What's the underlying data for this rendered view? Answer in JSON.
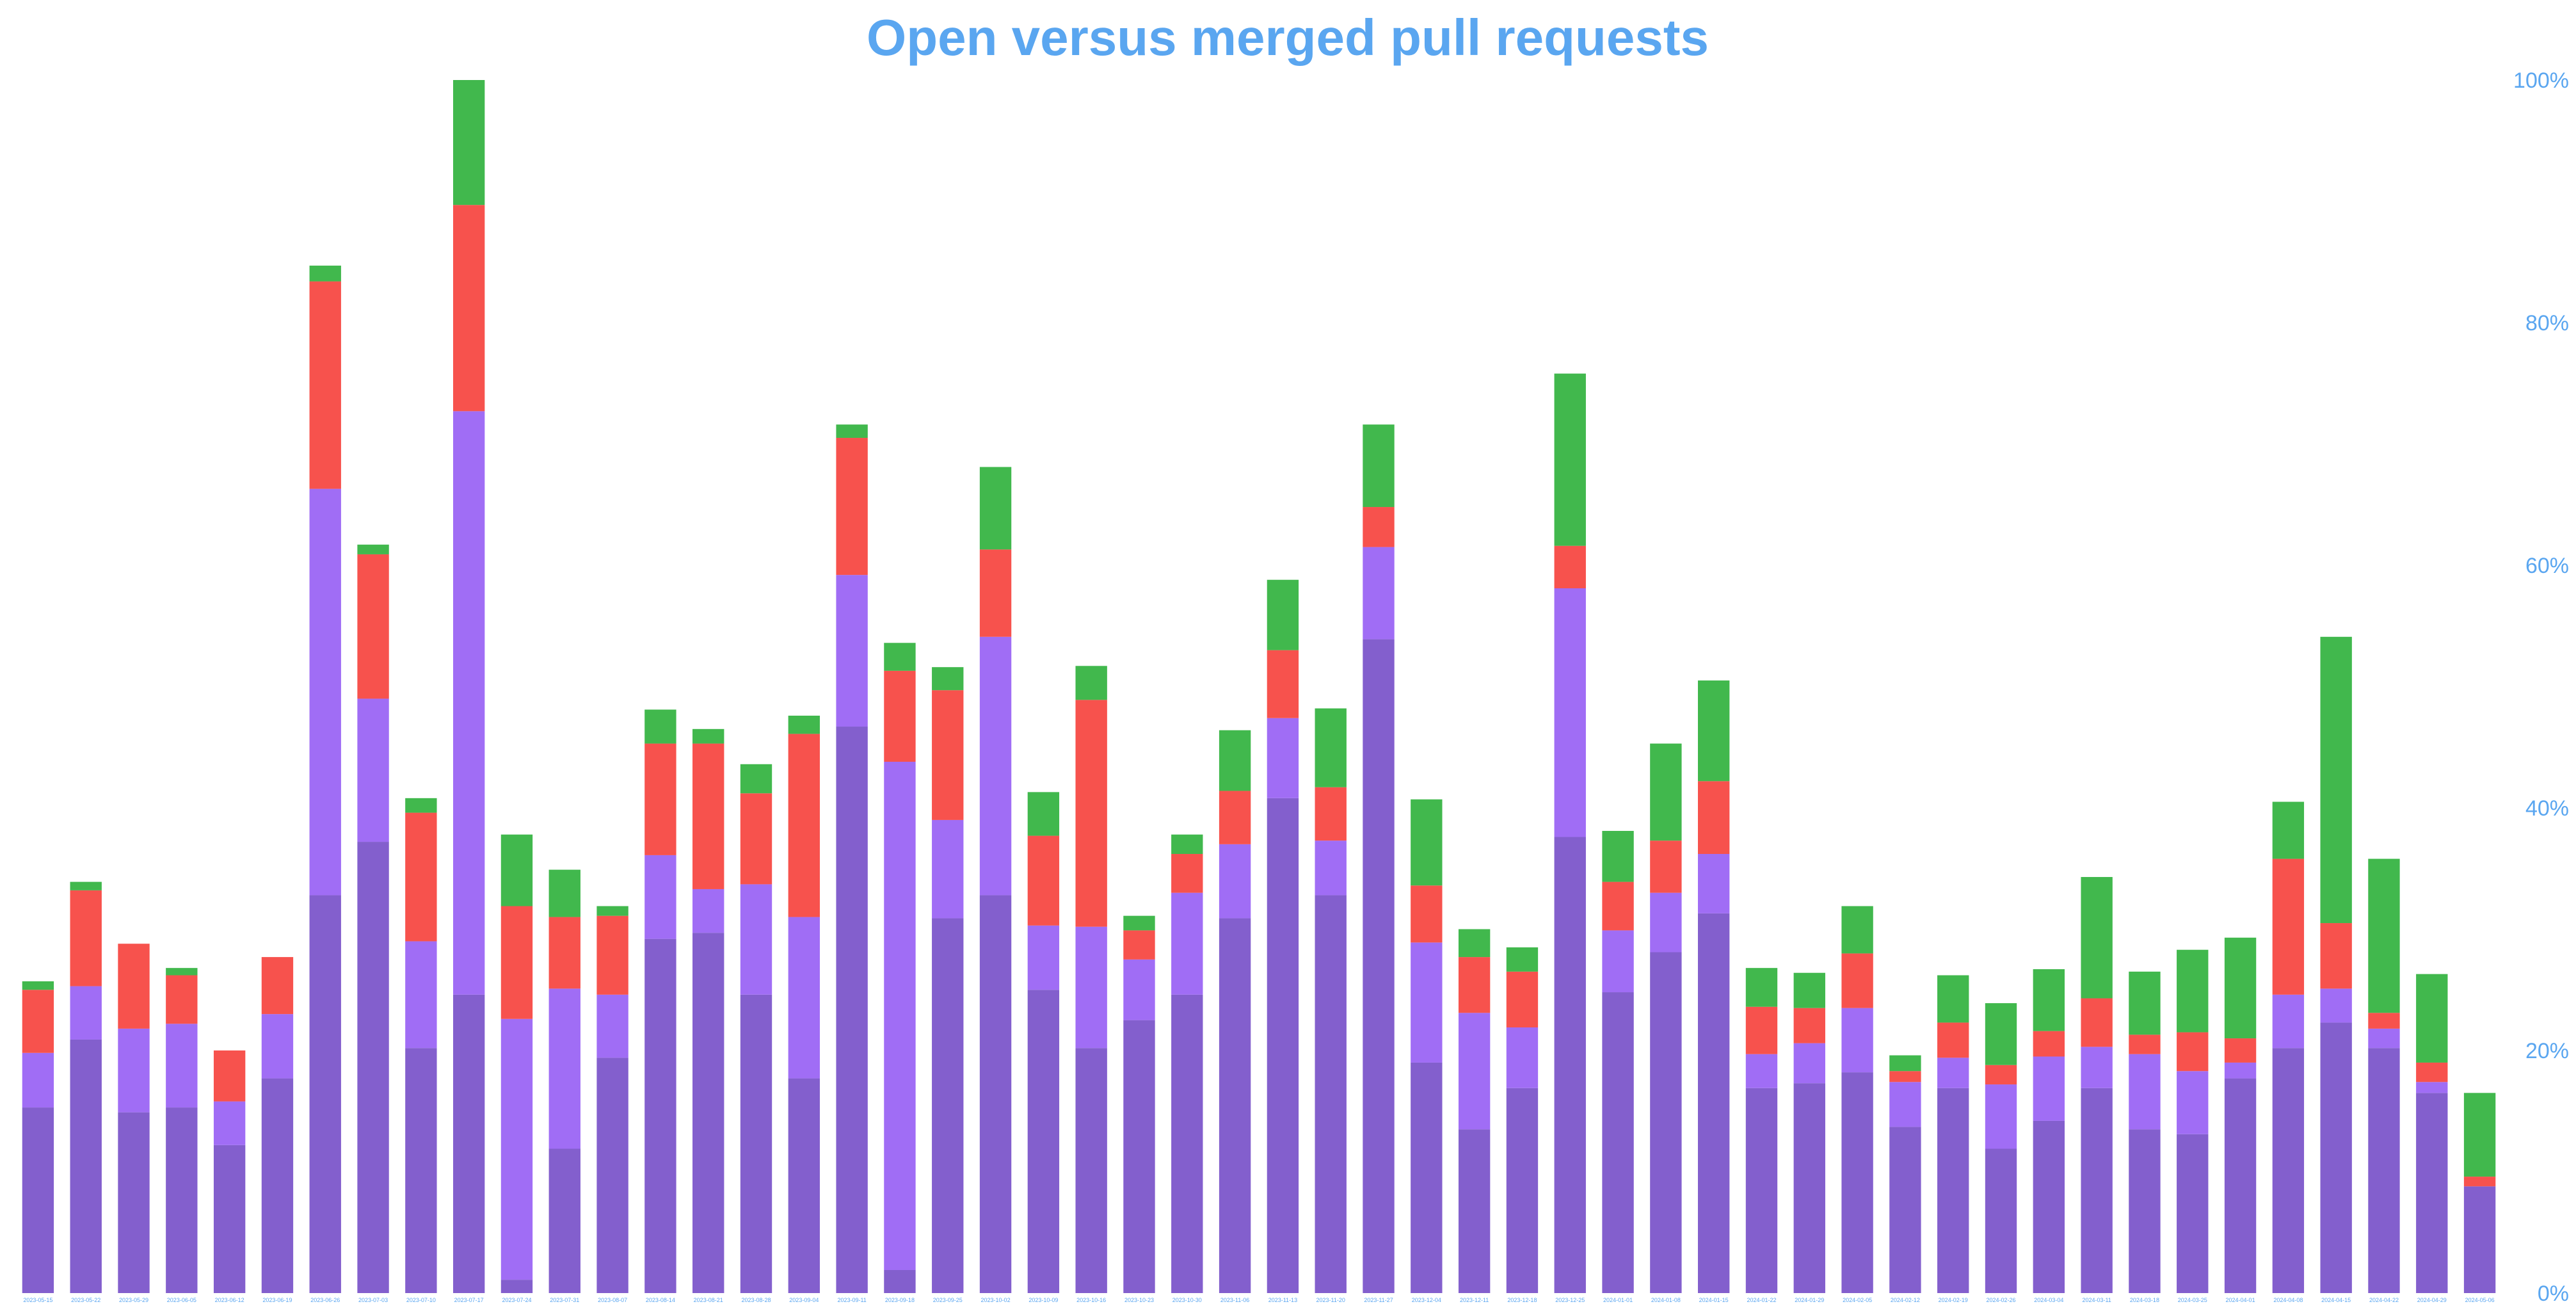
{
  "chart_data": {
    "type": "bar",
    "stacked": true,
    "title": "Open versus merged pull requests",
    "xlabel": "",
    "ylabel": "",
    "ylim": [
      0,
      100
    ],
    "y_axis_position": "right",
    "y_tick_values": [
      0,
      20,
      40,
      60,
      80,
      100
    ],
    "y_tick_labels": [
      "0%",
      "20%",
      "40%",
      "60%",
      "80%",
      "100%"
    ],
    "grid": false,
    "legend": "none",
    "colors": [
      "#835fcd",
      "#a06df5",
      "#f7524d",
      "#41b84d"
    ],
    "categories": [
      "2023-05-15",
      "2023-05-22",
      "2023-05-29",
      "2023-06-05",
      "2023-06-12",
      "2023-06-19",
      "2023-06-26",
      "2023-07-03",
      "2023-07-10",
      "2023-07-17",
      "2023-07-24",
      "2023-07-31",
      "2023-08-07",
      "2023-08-14",
      "2023-08-21",
      "2023-08-28",
      "2023-09-04",
      "2023-09-11",
      "2023-09-18",
      "2023-09-25",
      "2023-10-02",
      "2023-10-09",
      "2023-10-16",
      "2023-10-23",
      "2023-10-30",
      "2023-11-06",
      "2023-11-13",
      "2023-11-20",
      "2023-11-27",
      "2023-12-04",
      "2023-12-11",
      "2023-12-18",
      "2023-12-25",
      "2024-01-01",
      "2024-01-08",
      "2024-01-15",
      "2024-01-22",
      "2024-01-29",
      "2024-02-05",
      "2024-02-12",
      "2024-02-19",
      "2024-02-26",
      "2024-03-04",
      "2024-03-11",
      "2024-03-18",
      "2024-03-25",
      "2024-04-01",
      "2024-04-08",
      "2024-04-15",
      "2024-04-22",
      "2024-04-29",
      "2024-05-06"
    ],
    "series": [
      {
        "values": [
          15.3,
          20.9,
          14.9,
          15.3,
          12.2,
          17.7,
          32.8,
          37.2,
          20.2,
          24.6,
          1.1,
          11.9,
          19.4,
          29.2,
          29.7,
          24.6,
          17.7,
          46.7,
          1.9,
          30.9,
          32.8,
          25.0,
          20.2,
          22.5,
          24.6,
          30.9,
          40.8,
          32.8,
          53.9,
          19.0,
          13.5,
          16.9,
          37.6,
          24.8,
          28.1,
          31.3,
          16.9,
          17.3,
          18.2,
          13.7,
          16.9,
          11.9,
          14.2,
          16.9,
          13.5,
          13.1,
          17.7,
          20.2,
          22.3,
          20.2,
          16.5,
          8.8
        ]
      },
      {
        "values": [
          4.5,
          4.4,
          6.9,
          6.9,
          3.6,
          5.3,
          33.5,
          11.8,
          8.8,
          48.1,
          21.5,
          13.2,
          5.2,
          6.9,
          3.6,
          9.1,
          13.3,
          12.5,
          41.9,
          8.1,
          21.3,
          5.3,
          10.0,
          5.0,
          8.4,
          6.1,
          6.6,
          4.5,
          7.6,
          9.9,
          9.6,
          5.0,
          20.5,
          5.1,
          4.9,
          4.9,
          2.8,
          3.3,
          5.3,
          3.7,
          2.5,
          5.3,
          5.3,
          3.4,
          6.2,
          5.2,
          1.3,
          4.4,
          2.8,
          1.6,
          0.9,
          0.0
        ]
      },
      {
        "values": [
          5.2,
          7.9,
          7.0,
          4.0,
          4.2,
          4.7,
          17.1,
          11.9,
          10.6,
          17.0,
          9.3,
          5.9,
          6.5,
          9.2,
          12.0,
          7.5,
          15.1,
          11.3,
          7.5,
          10.7,
          7.2,
          7.4,
          18.7,
          2.4,
          3.2,
          4.4,
          5.6,
          4.4,
          3.3,
          4.7,
          4.6,
          4.6,
          3.5,
          4.0,
          4.3,
          6.0,
          3.9,
          2.9,
          4.5,
          0.9,
          2.9,
          1.6,
          2.1,
          4.0,
          1.6,
          3.2,
          2.0,
          11.2,
          5.4,
          1.3,
          1.6,
          0.8
        ]
      },
      {
        "values": [
          0.7,
          0.7,
          0.0,
          0.6,
          0.0,
          0.0,
          1.3,
          0.8,
          1.2,
          10.3,
          5.9,
          3.9,
          0.8,
          2.8,
          1.2,
          2.4,
          1.5,
          1.1,
          2.3,
          1.9,
          6.8,
          3.6,
          2.8,
          1.2,
          1.6,
          5.0,
          5.8,
          6.5,
          6.8,
          7.1,
          2.3,
          2.0,
          14.2,
          4.2,
          8.0,
          8.3,
          3.2,
          2.9,
          3.9,
          1.3,
          3.9,
          5.1,
          5.1,
          10.0,
          5.2,
          6.8,
          8.3,
          4.7,
          23.6,
          12.7,
          7.3,
          6.9
        ]
      }
    ]
  }
}
